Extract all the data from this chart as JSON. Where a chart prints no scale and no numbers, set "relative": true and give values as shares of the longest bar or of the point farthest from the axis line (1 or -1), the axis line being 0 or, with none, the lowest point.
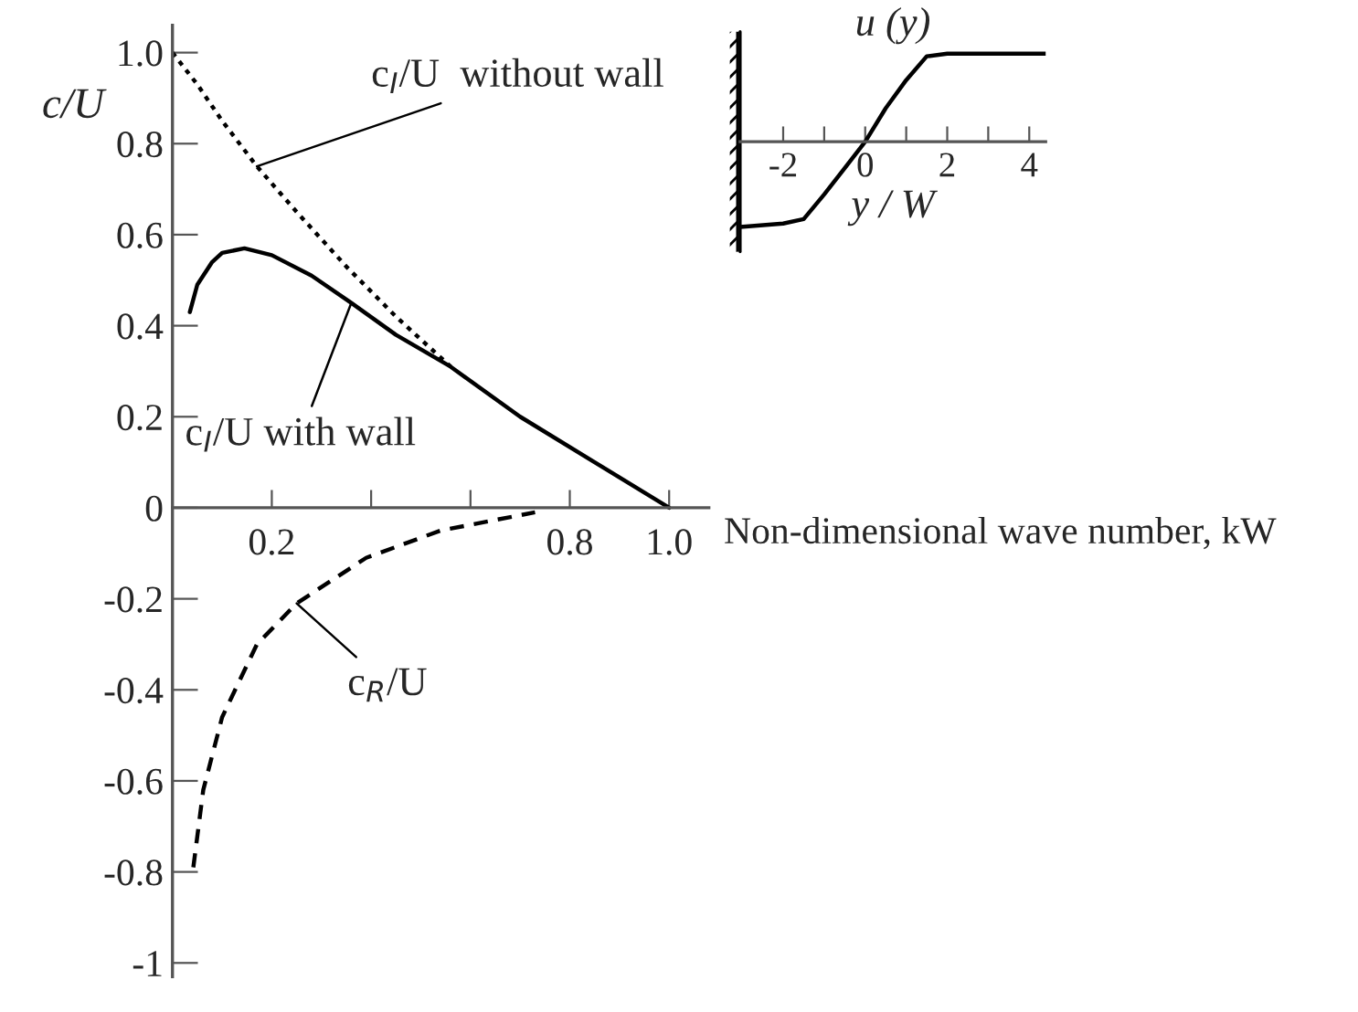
{
  "chart_data": [
    {
      "type": "line",
      "xlabel": "Non-dimensional wave number, kW",
      "ylabel": "c/U",
      "xlim": [
        0,
        1.08
      ],
      "ylim": [
        -1.03,
        1.06
      ],
      "xticks": [
        0.2,
        {
          "value": 0.4,
          "label": null
        },
        {
          "value": 0.6,
          "label": null
        },
        0.8,
        {
          "value": 1.0,
          "label": "1.0"
        }
      ],
      "yticks": [
        {
          "value": -1,
          "label": "-1"
        },
        {
          "value": -0.8,
          "label": "-0.8"
        },
        {
          "value": -0.6,
          "label": "-0.6"
        },
        {
          "value": -0.4,
          "label": "-0.4"
        },
        {
          "value": -0.2,
          "label": "-0.2"
        },
        0,
        0.2,
        0.4,
        0.6,
        0.8,
        {
          "value": 1.0,
          "label": "1.0"
        }
      ],
      "grid": false,
      "series": [
        {
          "color": "#000000",
          "line_style": "dotted",
          "x": [
            0,
            0.05,
            0.1,
            0.17,
            0.25,
            0.35,
            0.45,
            0.56
          ],
          "values": [
            1.0,
            0.93,
            0.85,
            0.75,
            0.65,
            0.53,
            0.42,
            0.31
          ]
        },
        {
          "color": "#000000",
          "line_style": "solid",
          "x": [
            0.035,
            0.05,
            0.08,
            0.1,
            0.145,
            0.2,
            0.28,
            0.36,
            0.45,
            0.56,
            0.7,
            0.85,
            1.0
          ],
          "values": [
            0.43,
            0.49,
            0.54,
            0.56,
            0.57,
            0.555,
            0.51,
            0.45,
            0.38,
            0.31,
            0.2,
            0.1,
            0
          ]
        },
        {
          "color": "#000000",
          "line_style": "dashed",
          "x": [
            0.042,
            0.062,
            0.1,
            0.17,
            0.25,
            0.39,
            0.54,
            0.73
          ],
          "values": [
            -0.79,
            -0.62,
            -0.46,
            -0.3,
            -0.21,
            -0.11,
            -0.05,
            -0.01
          ]
        }
      ],
      "annotations": [
        {
          "text": "c$_{I}$/U  without wall",
          "x": 0.17,
          "y": 0.75
        },
        {
          "text": "c$_{I}$/U with wall",
          "x": 0.36,
          "y": 0.45
        },
        {
          "text": "c$_{R}$/U",
          "x": 0.25,
          "y": -0.21
        }
      ]
    },
    {
      "type": "line",
      "title": "u (y)",
      "xlabel": "y / W",
      "relative": true,
      "tick_labels": "x",
      "xlim": [
        -3.05,
        4.4
      ],
      "xticks": [
        -2,
        {
          "value": -1,
          "label": null
        },
        0,
        {
          "value": 1,
          "label": null
        },
        2,
        {
          "value": 3,
          "label": null
        },
        4
      ],
      "series": [
        {
          "color": "#000000",
          "line_style": "solid",
          "x": [
            -3.05,
            -2,
            -1.5,
            -1,
            -0.5,
            0,
            0.5,
            1,
            1.5,
            2,
            4.4
          ],
          "values": [
            -0.97,
            -0.93,
            -0.88,
            -0.6,
            -0.3,
            0,
            0.38,
            0.7,
            0.97,
            1.0,
            1.0
          ]
        }
      ]
    }
  ]
}
